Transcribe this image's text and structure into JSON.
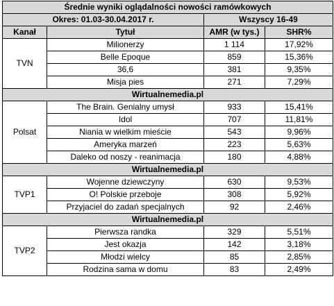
{
  "title": "Średnie wyniki oglądalności nowości ramówkowych",
  "period": "Okres: 01.03-30.04.2017 r.",
  "audience": "Wszyscy 16-49",
  "headers": {
    "channel": "Kanał",
    "title": "Tytuł",
    "amr": "AMR (w tys.)",
    "shr": "SHR%"
  },
  "source": "Wirtualnemedia.pl",
  "groups": [
    {
      "channel": "TVN",
      "rows": [
        {
          "title": "Milionerzy",
          "amr": "1 114",
          "shr": "17,92%"
        },
        {
          "title": "Belle Epoque",
          "amr": "859",
          "shr": "15,36%"
        },
        {
          "title": "36,6",
          "amr": "381",
          "shr": "9,35%"
        },
        {
          "title": "Misja pies",
          "amr": "271",
          "shr": "7,29%"
        }
      ]
    },
    {
      "channel": "Polsat",
      "rows": [
        {
          "title": "The Brain. Genialny umysł",
          "amr": "933",
          "shr": "15,41%"
        },
        {
          "title": "Idol",
          "amr": "707",
          "shr": "11,81%"
        },
        {
          "title": "Niania w wielkim mieście",
          "amr": "543",
          "shr": "9,96%"
        },
        {
          "title": "Ameryka marzeń",
          "amr": "223",
          "shr": "5,63%"
        },
        {
          "title": "Daleko od noszy - reanimacja",
          "amr": "180",
          "shr": "4,88%"
        }
      ]
    },
    {
      "channel": "TVP1",
      "rows": [
        {
          "title": "Wojenne dziewczyny",
          "amr": "630",
          "shr": "9,53%"
        },
        {
          "title": "O! Polskie przeboje",
          "amr": "308",
          "shr": "5,92%"
        },
        {
          "title": "Przyjaciel do zadań specjalnych",
          "amr": "92",
          "shr": "2,46%"
        }
      ]
    },
    {
      "channel": "TVP2",
      "rows": [
        {
          "title": "Pierwsza randka",
          "amr": "329",
          "shr": "5,51%"
        },
        {
          "title": "Jest okazja",
          "amr": "142",
          "shr": "3,18%"
        },
        {
          "title": "Młodzi wielcy",
          "amr": "85",
          "shr": "2,85%"
        },
        {
          "title": "Rodzina sama w domu",
          "amr": "83",
          "shr": "2,49%"
        }
      ]
    }
  ]
}
